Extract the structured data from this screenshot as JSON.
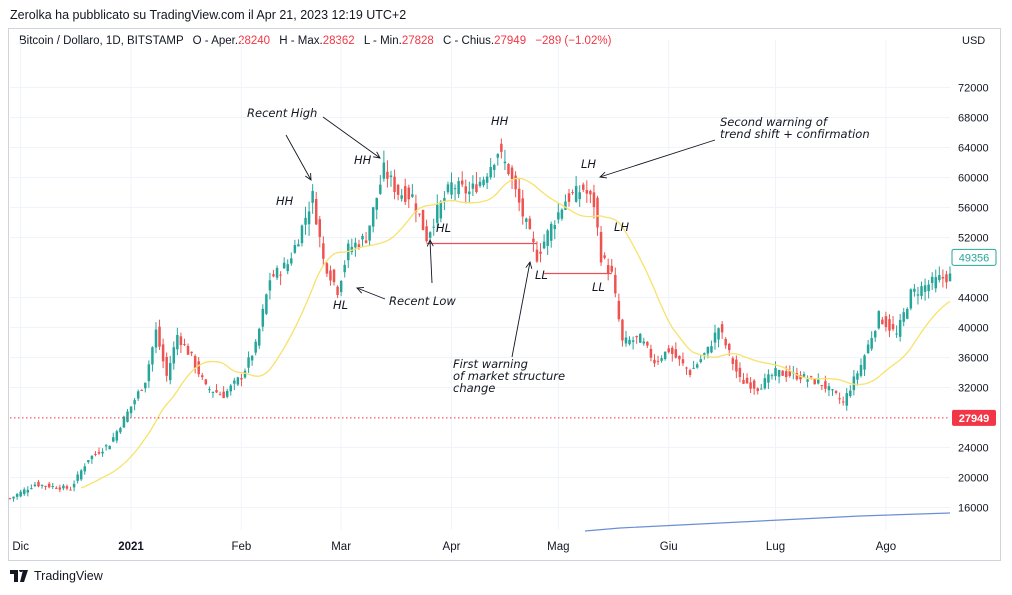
{
  "header": {
    "published_text": "Zerolka ha pubblicato su TradingView.com il Apr 21, 2023 12:19 UTC+2"
  },
  "legend": {
    "symbol": "Bitcoin / Dollaro, 1D, BITSTAMP",
    "open_label": "O - Aper.",
    "open_value": "28240",
    "high_label": "H - Max.",
    "high_value": "28362",
    "low_label": "L - Min.",
    "low_value": "27828",
    "close_label": "C - Chius.",
    "close_value": "27949",
    "change": "−289 (−1.02%)"
  },
  "currency": "USD",
  "footer": {
    "brand": "TradingView"
  },
  "colors": {
    "up": "#26a69a",
    "down": "#ef5350",
    "ma": "#f7e26b",
    "volume_line": "#6b8fd6",
    "last_price": "#f23645"
  },
  "chart_data": {
    "type": "candlestick",
    "ylim": [
      13000,
      77000
    ],
    "y_ticks": [
      {
        "value": 16000,
        "label": "16000"
      },
      {
        "value": 20000,
        "label": "20000"
      },
      {
        "value": 24000,
        "label": "24000"
      },
      {
        "value": 32000,
        "label": "32000"
      },
      {
        "value": 36000,
        "label": "36000"
      },
      {
        "value": 40000,
        "label": "40000"
      },
      {
        "value": 44000,
        "label": "44000"
      },
      {
        "value": 52000,
        "label": "52000"
      },
      {
        "value": 56000,
        "label": "56000"
      },
      {
        "value": 60000,
        "label": "60000"
      },
      {
        "value": 64000,
        "label": "64000"
      },
      {
        "value": 68000,
        "label": "68000"
      },
      {
        "value": 72000,
        "label": "72000"
      }
    ],
    "x_ticks": [
      {
        "label": "Dic",
        "date": "2020-12-01"
      },
      {
        "label": "2021",
        "date": "2021-01-01",
        "bold": true
      },
      {
        "label": "Feb",
        "date": "2021-02-01"
      },
      {
        "label": "Mar",
        "date": "2021-03-01"
      },
      {
        "label": "Apr",
        "date": "2021-04-01"
      },
      {
        "label": "Mag",
        "date": "2021-05-01"
      },
      {
        "label": "Giu",
        "date": "2021-06-01"
      },
      {
        "label": "Lug",
        "date": "2021-07-01"
      },
      {
        "label": "Ago",
        "date": "2021-08-01"
      }
    ],
    "x_range": [
      "2020-11-28",
      "2021-08-19"
    ],
    "last_price": {
      "value": 27949,
      "label": "27949"
    },
    "current_price": {
      "value": 49356,
      "label": "49356"
    },
    "price_path": [
      {
        "date": "2020-11-28",
        "price": 17200
      },
      {
        "date": "2020-12-05",
        "price": 19100
      },
      {
        "date": "2020-12-15",
        "price": 18500
      },
      {
        "date": "2020-12-20",
        "price": 22500
      },
      {
        "date": "2020-12-26",
        "price": 24500
      },
      {
        "date": "2021-01-01",
        "price": 29500
      },
      {
        "date": "2021-01-05",
        "price": 33000
      },
      {
        "date": "2021-01-08",
        "price": 39500
      },
      {
        "date": "2021-01-11",
        "price": 33500
      },
      {
        "date": "2021-01-14",
        "price": 39000
      },
      {
        "date": "2021-01-18",
        "price": 36000
      },
      {
        "date": "2021-01-22",
        "price": 32000
      },
      {
        "date": "2021-01-27",
        "price": 31000
      },
      {
        "date": "2021-02-01",
        "price": 33500
      },
      {
        "date": "2021-02-05",
        "price": 37500
      },
      {
        "date": "2021-02-09",
        "price": 46500
      },
      {
        "date": "2021-02-14",
        "price": 48500
      },
      {
        "date": "2021-02-17",
        "price": 52000
      },
      {
        "date": "2021-02-21",
        "price": 57500
      },
      {
        "date": "2021-02-24",
        "price": 49000
      },
      {
        "date": "2021-02-28",
        "price": 45000
      },
      {
        "date": "2021-03-03",
        "price": 50500
      },
      {
        "date": "2021-03-08",
        "price": 52000
      },
      {
        "date": "2021-03-13",
        "price": 61000
      },
      {
        "date": "2021-03-17",
        "price": 58000
      },
      {
        "date": "2021-03-21",
        "price": 57500
      },
      {
        "date": "2021-03-25",
        "price": 52000
      },
      {
        "date": "2021-03-28",
        "price": 55500
      },
      {
        "date": "2021-04-01",
        "price": 59000
      },
      {
        "date": "2021-04-06",
        "price": 58000
      },
      {
        "date": "2021-04-10",
        "price": 60000
      },
      {
        "date": "2021-04-14",
        "price": 63500
      },
      {
        "date": "2021-04-17",
        "price": 61000
      },
      {
        "date": "2021-04-21",
        "price": 55000
      },
      {
        "date": "2021-04-25",
        "price": 49500
      },
      {
        "date": "2021-04-29",
        "price": 53500
      },
      {
        "date": "2021-05-03",
        "price": 57000
      },
      {
        "date": "2021-05-08",
        "price": 58500
      },
      {
        "date": "2021-05-11",
        "price": 56500
      },
      {
        "date": "2021-05-13",
        "price": 49500
      },
      {
        "date": "2021-05-16",
        "price": 47000
      },
      {
        "date": "2021-05-19",
        "price": 38000
      },
      {
        "date": "2021-05-24",
        "price": 38500
      },
      {
        "date": "2021-05-28",
        "price": 35500
      },
      {
        "date": "2021-06-01",
        "price": 37000
      },
      {
        "date": "2021-06-07",
        "price": 34000
      },
      {
        "date": "2021-06-12",
        "price": 37000
      },
      {
        "date": "2021-06-15",
        "price": 40000
      },
      {
        "date": "2021-06-21",
        "price": 33000
      },
      {
        "date": "2021-06-26",
        "price": 32000
      },
      {
        "date": "2021-07-01",
        "price": 34000
      },
      {
        "date": "2021-07-08",
        "price": 33500
      },
      {
        "date": "2021-07-14",
        "price": 32500
      },
      {
        "date": "2021-07-20",
        "price": 30000
      },
      {
        "date": "2021-07-25",
        "price": 35000
      },
      {
        "date": "2021-07-30",
        "price": 41500
      },
      {
        "date": "2021-08-04",
        "price": 39000
      },
      {
        "date": "2021-08-08",
        "price": 44500
      },
      {
        "date": "2021-08-12",
        "price": 45500
      },
      {
        "date": "2021-08-16",
        "price": 46500
      },
      {
        "date": "2021-08-19",
        "price": 46800
      }
    ],
    "annotations": [
      {
        "text": "Recent High"
      },
      {
        "text": "HH"
      },
      {
        "text": "HH"
      },
      {
        "text": "HH"
      },
      {
        "text": "HL"
      },
      {
        "text": "HL"
      },
      {
        "text": "Recent Low"
      },
      {
        "text": "LH"
      },
      {
        "text": "LH"
      },
      {
        "text": "LL"
      },
      {
        "text": "LL"
      },
      {
        "text": "Second warning of"
      },
      {
        "text": "trend shift + confirmation"
      },
      {
        "text": "First warning"
      },
      {
        "text": "of market structure"
      },
      {
        "text": "change"
      }
    ],
    "levels": [
      {
        "from": "2021-03-25",
        "to": "2021-04-25",
        "price": 51200
      },
      {
        "from": "2021-04-27",
        "to": "2021-05-16",
        "price": 47200
      }
    ]
  }
}
